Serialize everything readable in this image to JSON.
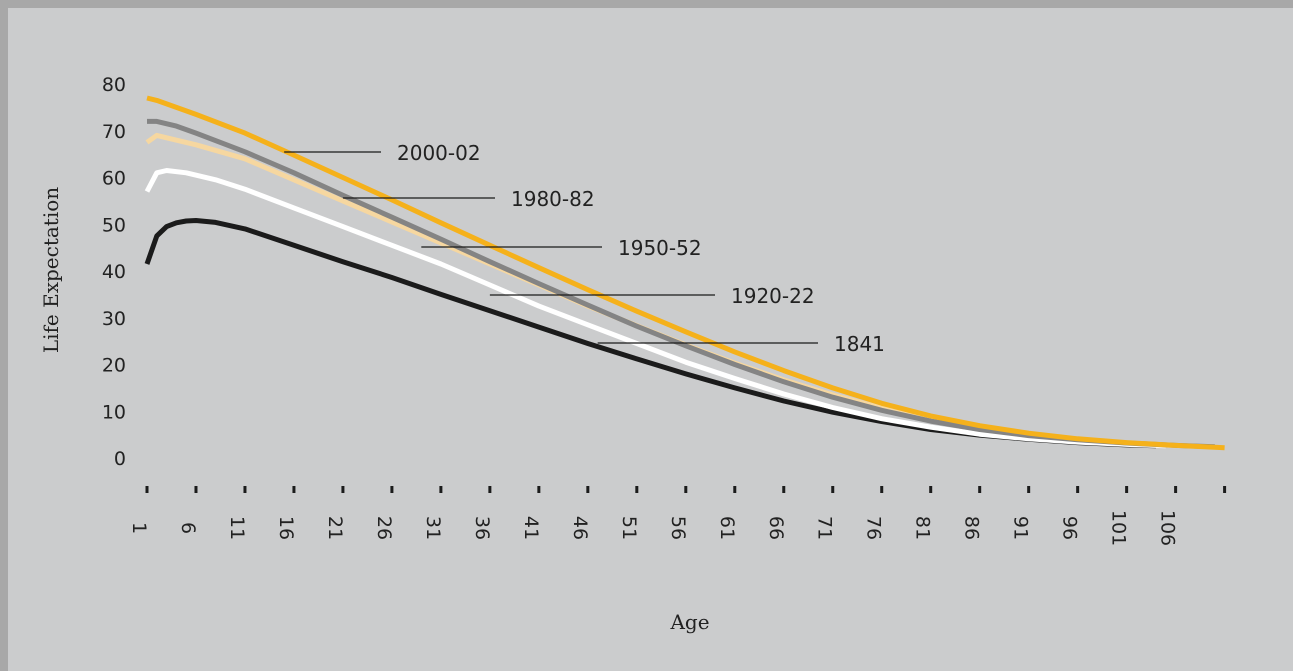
{
  "chart_data": {
    "type": "line",
    "title": "",
    "xlabel": "Age",
    "ylabel": "Life Expectation",
    "ylim": [
      0,
      80
    ],
    "yticks": [
      0,
      10,
      20,
      30,
      40,
      50,
      60,
      70,
      80
    ],
    "xlim": [
      1,
      111
    ],
    "xticks": [
      1,
      6,
      11,
      16,
      21,
      26,
      31,
      36,
      41,
      46,
      51,
      56,
      61,
      66,
      71,
      76,
      81,
      86,
      91,
      96,
      101,
      106
    ],
    "grid": false,
    "series": [
      {
        "name": "1841",
        "color": "#1b1b1b",
        "label_anchor_x": 47,
        "points": [
          [
            1,
            41.5
          ],
          [
            2,
            47.5
          ],
          [
            3,
            49.5
          ],
          [
            4,
            50.3
          ],
          [
            5,
            50.7
          ],
          [
            6,
            50.8
          ],
          [
            8,
            50.4
          ],
          [
            11,
            49
          ],
          [
            16,
            45.5
          ],
          [
            21,
            42
          ],
          [
            26,
            38.6
          ],
          [
            31,
            35
          ],
          [
            36,
            31.5
          ],
          [
            41,
            28
          ],
          [
            46,
            24.5
          ],
          [
            51,
            21.2
          ],
          [
            56,
            18
          ],
          [
            61,
            15
          ],
          [
            66,
            12.2
          ],
          [
            71,
            9.8
          ],
          [
            76,
            7.8
          ],
          [
            81,
            6.1
          ],
          [
            86,
            4.9
          ],
          [
            91,
            4
          ],
          [
            96,
            3.3
          ],
          [
            101,
            2.8
          ],
          [
            104,
            2.6
          ]
        ]
      },
      {
        "name": "1920-22",
        "color": "#ffffff",
        "label_anchor_x": 36,
        "points": [
          [
            1,
            57
          ],
          [
            2,
            61
          ],
          [
            3,
            61.5
          ],
          [
            5,
            61
          ],
          [
            8,
            59.5
          ],
          [
            11,
            57.5
          ],
          [
            16,
            53.5
          ],
          [
            21,
            49.5
          ],
          [
            26,
            45.5
          ],
          [
            31,
            41.5
          ],
          [
            36,
            37
          ],
          [
            41,
            32.5
          ],
          [
            46,
            28.5
          ],
          [
            51,
            24.5
          ],
          [
            56,
            20.5
          ],
          [
            61,
            17
          ],
          [
            66,
            13.7
          ],
          [
            71,
            10.8
          ],
          [
            76,
            8.4
          ],
          [
            81,
            6.6
          ],
          [
            86,
            5.1
          ],
          [
            91,
            4.1
          ],
          [
            96,
            3.4
          ],
          [
            101,
            2.9
          ],
          [
            105,
            2.6
          ]
        ]
      },
      {
        "name": "1950-52",
        "color": "#f6d7a0",
        "label_anchor_x": 29,
        "points": [
          [
            1,
            67.5
          ],
          [
            2,
            69
          ],
          [
            3,
            68.5
          ],
          [
            6,
            67
          ],
          [
            11,
            64
          ],
          [
            16,
            59.5
          ],
          [
            21,
            55
          ],
          [
            26,
            50.5
          ],
          [
            31,
            46
          ],
          [
            36,
            41.5
          ],
          [
            41,
            37
          ],
          [
            46,
            32.5
          ],
          [
            51,
            28.3
          ],
          [
            56,
            24.2
          ],
          [
            61,
            20.3
          ],
          [
            66,
            16.7
          ],
          [
            71,
            13.5
          ],
          [
            76,
            10.7
          ],
          [
            81,
            8.4
          ],
          [
            86,
            6.5
          ],
          [
            91,
            5.1
          ],
          [
            96,
            4
          ],
          [
            101,
            3.2
          ],
          [
            106,
            2.6
          ]
        ]
      },
      {
        "name": "1980-82",
        "color": "#848484",
        "label_anchor_x": 21,
        "points": [
          [
            1,
            72
          ],
          [
            2,
            72
          ],
          [
            4,
            71
          ],
          [
            6,
            69.5
          ],
          [
            11,
            65.5
          ],
          [
            16,
            61
          ],
          [
            21,
            56.2
          ],
          [
            26,
            51.5
          ],
          [
            31,
            46.8
          ],
          [
            36,
            42
          ],
          [
            41,
            37.3
          ],
          [
            46,
            32.7
          ],
          [
            51,
            28.2
          ],
          [
            56,
            24
          ],
          [
            61,
            20
          ],
          [
            66,
            16.3
          ],
          [
            71,
            13
          ],
          [
            76,
            10.2
          ],
          [
            81,
            7.9
          ],
          [
            86,
            6.1
          ],
          [
            91,
            4.8
          ],
          [
            96,
            3.9
          ],
          [
            101,
            3.2
          ],
          [
            106,
            2.7
          ],
          [
            110,
            2.4
          ]
        ]
      },
      {
        "name": "2000-02",
        "color": "#f5b11b",
        "label_anchor_x": 15,
        "points": [
          [
            1,
            77
          ],
          [
            2,
            76.5
          ],
          [
            4,
            75
          ],
          [
            6,
            73.5
          ],
          [
            11,
            69.5
          ],
          [
            16,
            64.8
          ],
          [
            21,
            60
          ],
          [
            26,
            55.2
          ],
          [
            31,
            50.3
          ],
          [
            36,
            45.5
          ],
          [
            41,
            40.7
          ],
          [
            46,
            36
          ],
          [
            51,
            31.4
          ],
          [
            56,
            27
          ],
          [
            61,
            22.7
          ],
          [
            66,
            18.7
          ],
          [
            71,
            15
          ],
          [
            76,
            11.7
          ],
          [
            81,
            9
          ],
          [
            86,
            6.9
          ],
          [
            91,
            5.3
          ],
          [
            96,
            4.1
          ],
          [
            101,
            3.3
          ],
          [
            106,
            2.7
          ],
          [
            110,
            2.3
          ],
          [
            111,
            2.2
          ]
        ]
      }
    ]
  }
}
